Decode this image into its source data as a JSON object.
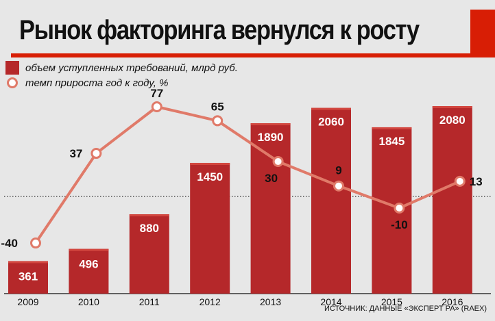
{
  "title": "Рынок факторинга вернулся к росту",
  "source": "ИСТОЧНИК: ДАННЫЕ «ЭКСПЕРТ РА» (RAEX)",
  "colors": {
    "bar": "#b5282a",
    "bar_top": "#d2463f",
    "line": "#e07a69",
    "accent": "#d81e05",
    "background": "#e7e7e7"
  },
  "chart_data": {
    "type": "bar",
    "categories": [
      "2009",
      "2010",
      "2011",
      "2012",
      "2013",
      "2014",
      "2015",
      "2016"
    ],
    "series": [
      {
        "name": "объем уступленных требований, млрд руб.",
        "type": "bar",
        "values": [
          361,
          496,
          880,
          1450,
          1890,
          2060,
          1845,
          2080
        ]
      },
      {
        "name": "темп прироста год к году, %",
        "type": "line",
        "values": [
          -40,
          37,
          77,
          65,
          30,
          9,
          -10,
          13
        ]
      }
    ],
    "legend": "top-left",
    "zero_line": "dotted",
    "grid": false
  }
}
